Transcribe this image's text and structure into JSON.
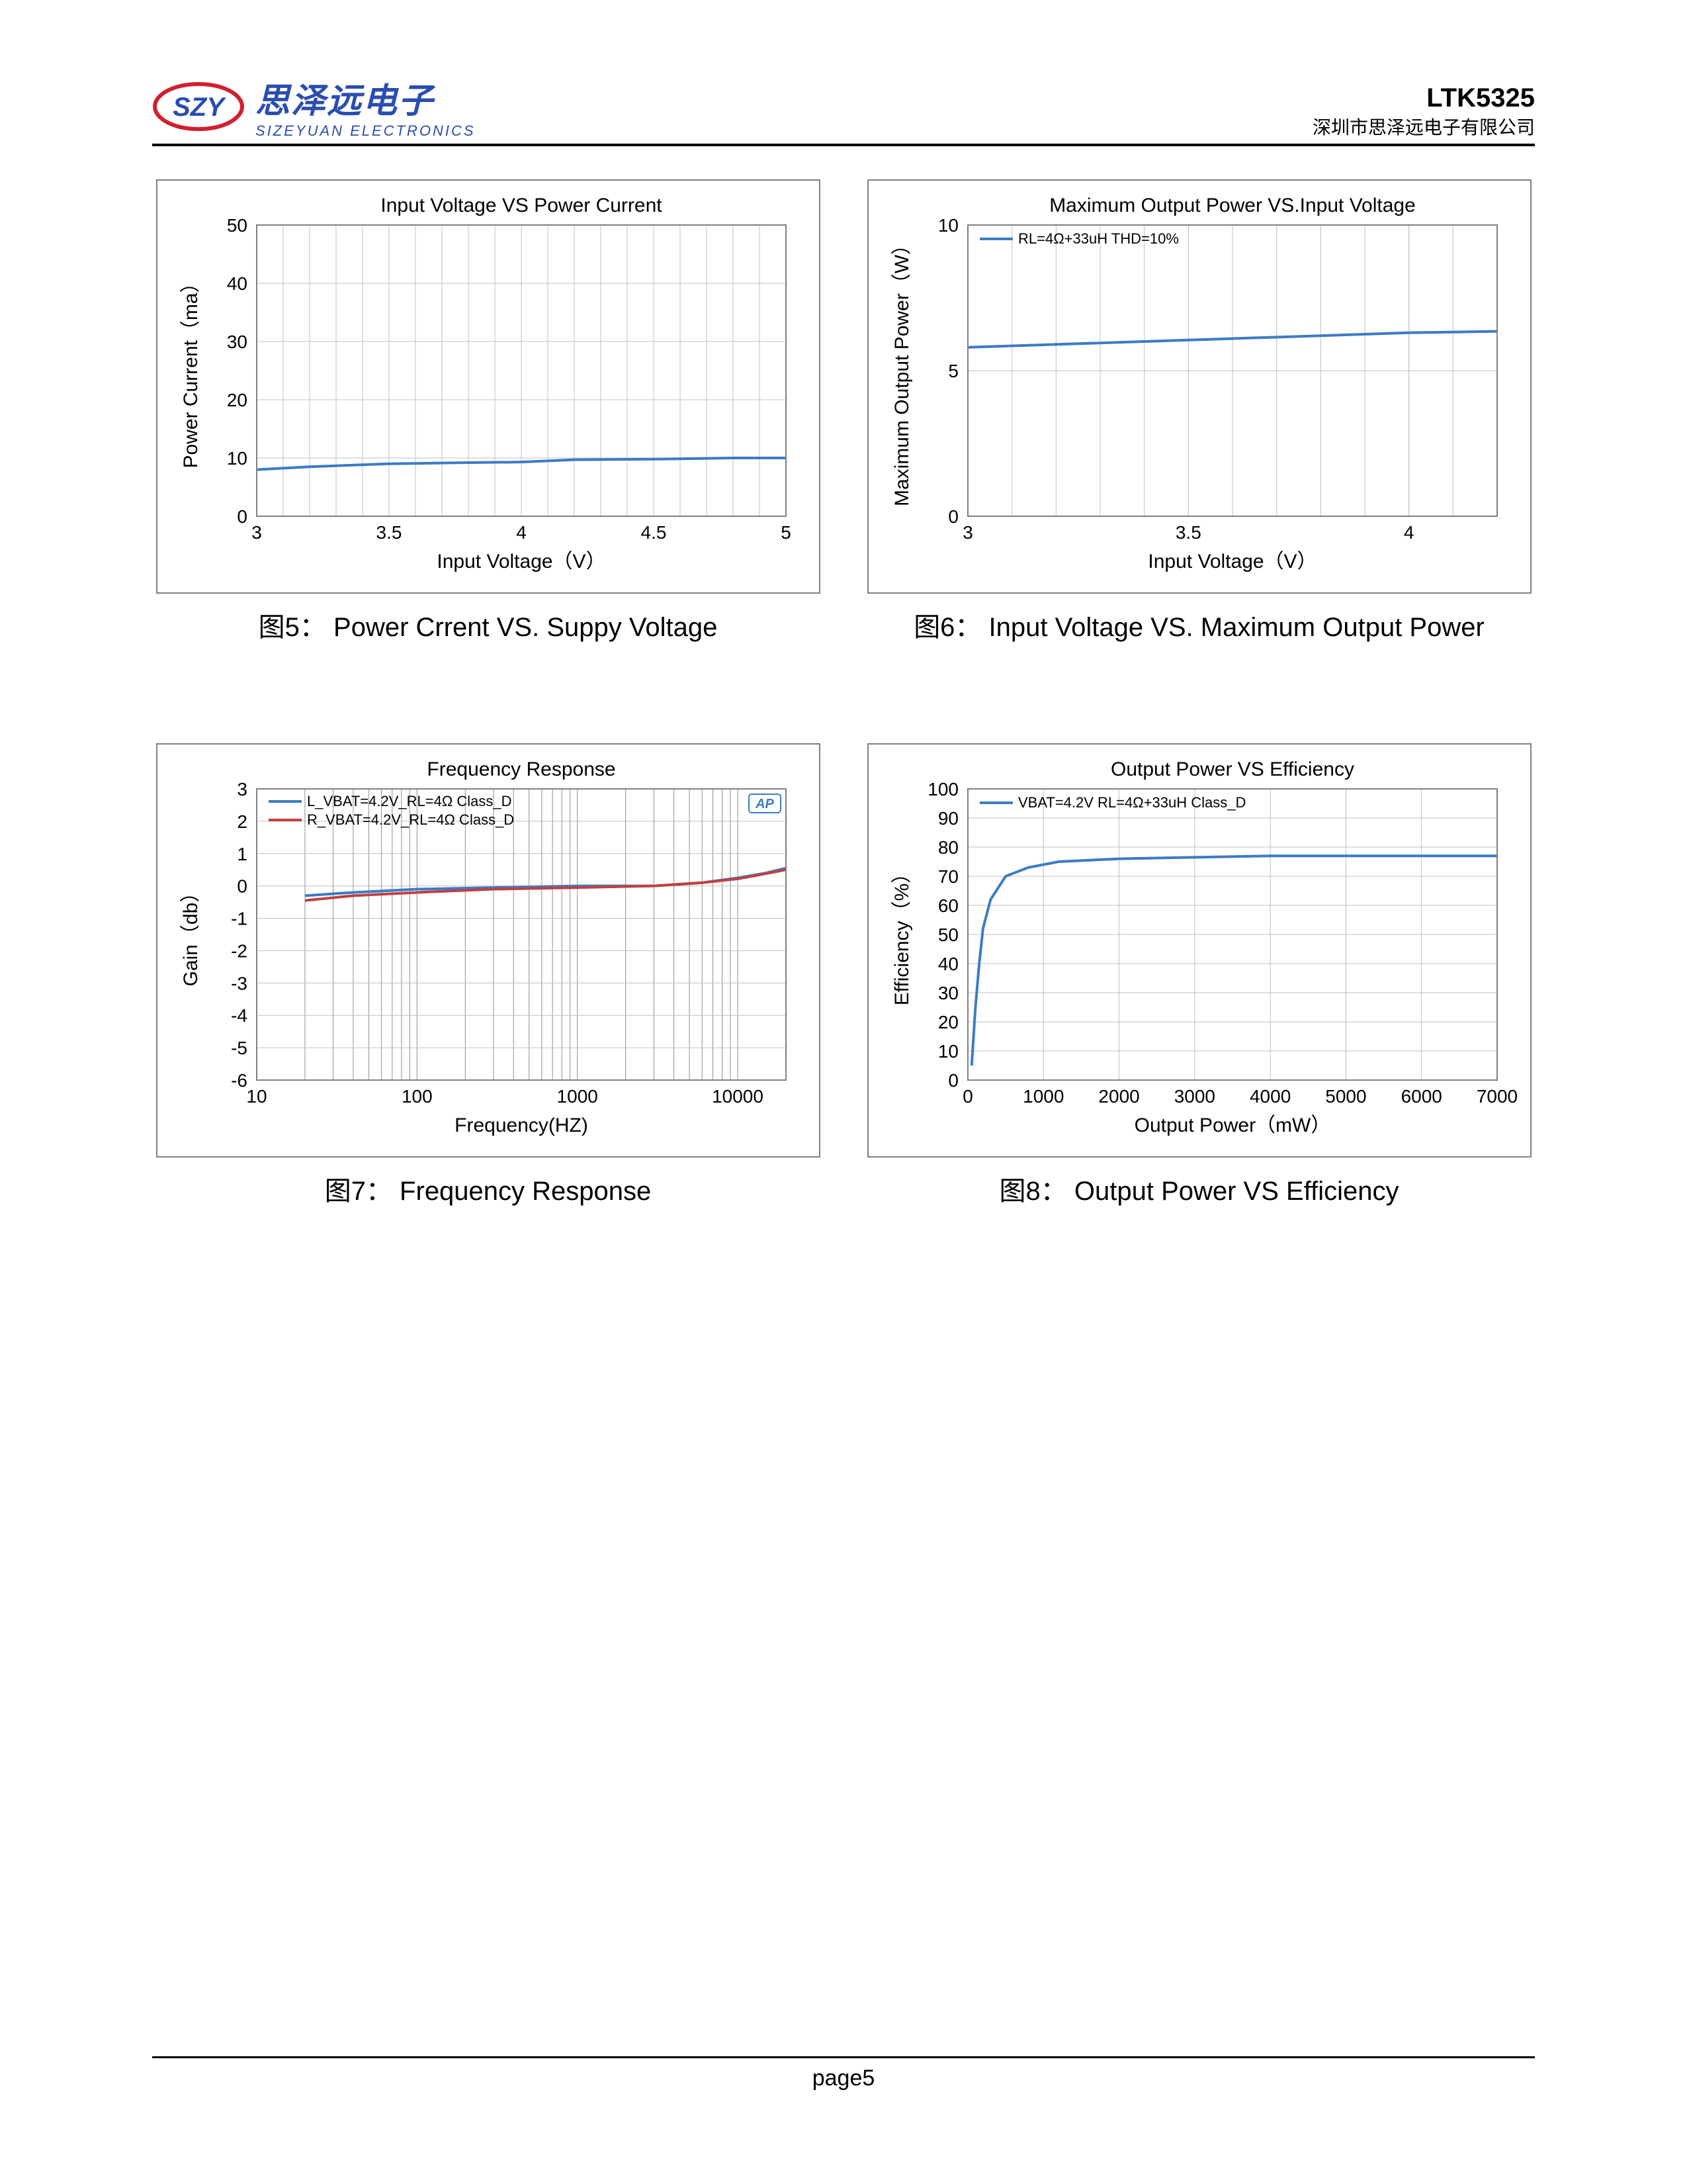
{
  "header": {
    "logo_cn": "思泽远电子",
    "logo_en": "SIZEYUAN ELECTRONICS",
    "logo_badge": "SZY",
    "part_no": "LTK5325",
    "company": "深圳市思泽远电子有限公司",
    "brand_blue": "#2a4db0",
    "brand_red": "#d02030"
  },
  "footer": {
    "page": "page5"
  },
  "colors": {
    "grid": "#c0c0c0",
    "grid_log": "#909090",
    "border": "#808080",
    "series_blue": "#3b7cc4",
    "series_red": "#c04040",
    "ap_badge": "#3b7cc4"
  },
  "chart5": {
    "type": "line",
    "title": "Input Voltage VS Power Current",
    "caption": "图5： Power Crrent VS. Suppy Voltage",
    "xlabel": "Input Voltage（V）",
    "ylabel": "Power Current（ma）",
    "xlim": [
      3,
      5
    ],
    "xtick_step": 0.5,
    "ylim": [
      0,
      50
    ],
    "ytick_step": 10,
    "series": [
      {
        "color": "#3b7cc4",
        "points": [
          [
            3.0,
            8.0
          ],
          [
            3.2,
            8.5
          ],
          [
            3.5,
            9.0
          ],
          [
            3.8,
            9.2
          ],
          [
            4.0,
            9.3
          ],
          [
            4.2,
            9.7
          ],
          [
            4.5,
            9.8
          ],
          [
            4.8,
            10.0
          ],
          [
            5.0,
            10.0
          ]
        ]
      }
    ]
  },
  "chart6": {
    "type": "line",
    "title": "Maximum Output Power VS.Input Voltage",
    "caption": "图6： Input Voltage VS. Maximum Output Power",
    "xlabel": "Input Voltage（V）",
    "ylabel": "Maximum Output Power（W）",
    "xlim": [
      3,
      4.2
    ],
    "xticks": [
      3,
      3.5,
      4
    ],
    "ylim": [
      0,
      10
    ],
    "ytick_step": 5,
    "legend": "RL=4Ω+33uH THD=10%",
    "series": [
      {
        "color": "#3b7cc4",
        "points": [
          [
            3.0,
            5.8
          ],
          [
            3.2,
            5.9
          ],
          [
            3.4,
            6.0
          ],
          [
            3.6,
            6.1
          ],
          [
            3.8,
            6.2
          ],
          [
            4.0,
            6.3
          ],
          [
            4.2,
            6.35
          ]
        ]
      }
    ]
  },
  "chart7": {
    "type": "line-logx",
    "title": "Frequency Response",
    "caption": "图7： Frequency Response",
    "xlabel": "Frequency(HZ)",
    "ylabel": "Gain（db）",
    "xlim_log": [
      10,
      20000
    ],
    "xticks": [
      10,
      100,
      1000,
      10000
    ],
    "ylim": [
      -6,
      3
    ],
    "ytick_step": 1,
    "ap_badge": "AP",
    "legends": [
      "L_VBAT=4.2V_RL=4Ω Class_D",
      "R_VBAT=4.2V_RL=4Ω Class_D"
    ],
    "series": [
      {
        "color": "#3b7cc4",
        "points_logx": [
          [
            20,
            -0.3
          ],
          [
            40,
            -0.2
          ],
          [
            100,
            -0.1
          ],
          [
            300,
            -0.05
          ],
          [
            1000,
            0.0
          ],
          [
            3000,
            0.0
          ],
          [
            6000,
            0.1
          ],
          [
            10000,
            0.25
          ],
          [
            15000,
            0.4
          ],
          [
            20000,
            0.55
          ]
        ]
      },
      {
        "color": "#c04040",
        "points_logx": [
          [
            20,
            -0.45
          ],
          [
            40,
            -0.3
          ],
          [
            100,
            -0.2
          ],
          [
            300,
            -0.1
          ],
          [
            1000,
            -0.05
          ],
          [
            3000,
            0.0
          ],
          [
            6000,
            0.1
          ],
          [
            10000,
            0.22
          ],
          [
            15000,
            0.38
          ],
          [
            20000,
            0.5
          ]
        ]
      }
    ]
  },
  "chart8": {
    "type": "line",
    "title": "Output Power VS Efficiency",
    "caption": "图8： Output Power VS Efficiency",
    "xlabel": "Output Power（mW）",
    "ylabel": "Efficiency（%）",
    "xlim": [
      0,
      7000
    ],
    "xtick_step": 1000,
    "ylim": [
      0,
      100
    ],
    "ytick_step": 10,
    "legend": "VBAT=4.2V  RL=4Ω+33uH Class_D",
    "series": [
      {
        "color": "#3b7cc4",
        "points": [
          [
            50,
            5
          ],
          [
            100,
            25
          ],
          [
            150,
            40
          ],
          [
            200,
            52
          ],
          [
            300,
            62
          ],
          [
            500,
            70
          ],
          [
            800,
            73
          ],
          [
            1200,
            75
          ],
          [
            2000,
            76
          ],
          [
            3000,
            76.5
          ],
          [
            4000,
            77
          ],
          [
            5000,
            77
          ],
          [
            6000,
            77
          ],
          [
            7000,
            77
          ]
        ]
      }
    ]
  }
}
